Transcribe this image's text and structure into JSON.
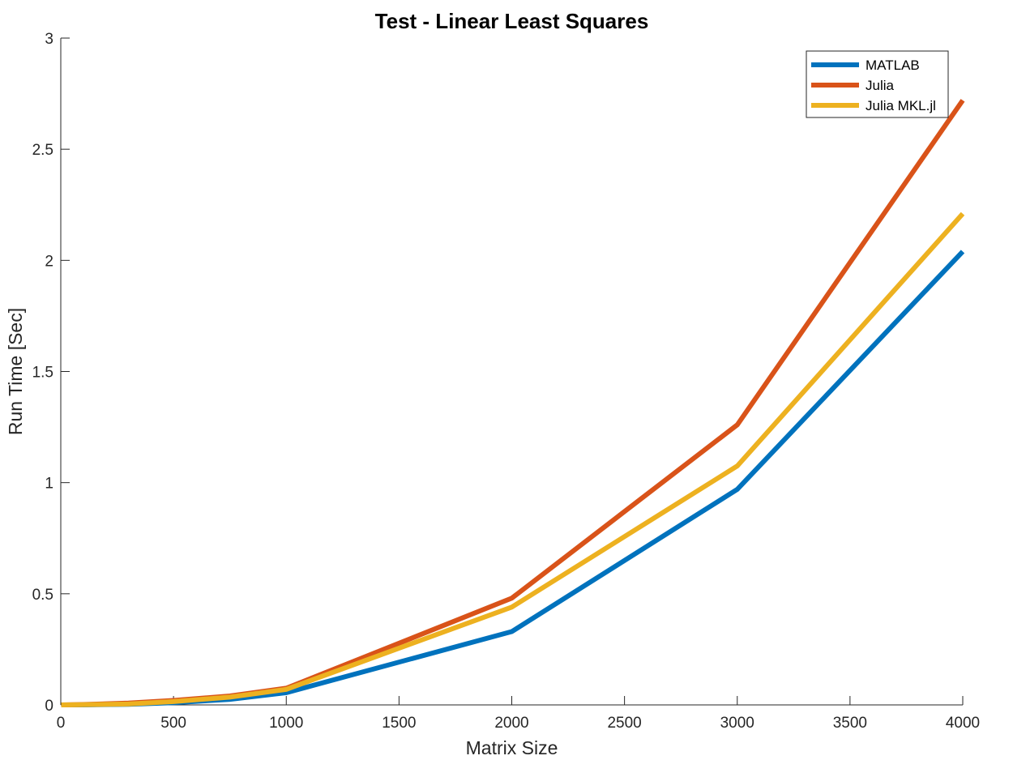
{
  "chart_data": {
    "type": "line",
    "title": "Test - Linear Least Squares",
    "xlabel": "Matrix Size",
    "ylabel": "Run Time  [Sec]",
    "xlim": [
      0,
      4000
    ],
    "ylim": [
      0,
      3
    ],
    "xticks": [
      0,
      500,
      1000,
      1500,
      2000,
      2500,
      3000,
      3500,
      4000
    ],
    "xtick_labels": [
      "0",
      "500",
      "1000",
      "1500",
      "2000",
      "2500",
      "3000",
      "3500",
      "4000"
    ],
    "yticks": [
      0,
      0.5,
      1,
      1.5,
      2,
      2.5,
      3
    ],
    "ytick_labels": [
      "0",
      "0.5",
      "1",
      "1.5",
      "2",
      "2.5",
      "3"
    ],
    "grid": false,
    "legend_position": "top-right",
    "x": [
      2,
      100,
      300,
      500,
      750,
      1000,
      2000,
      3000,
      4000
    ],
    "series": [
      {
        "name": "MATLAB",
        "color": "#0072BD",
        "values": [
          0.0,
          0.0,
          0.003,
          0.01,
          0.025,
          0.055,
          0.33,
          0.97,
          2.04
        ]
      },
      {
        "name": "Julia",
        "color": "#D95319",
        "values": [
          0.0,
          0.002,
          0.008,
          0.02,
          0.04,
          0.075,
          0.48,
          1.26,
          2.72
        ]
      },
      {
        "name": "Julia MKL.jl",
        "color": "#EDB120",
        "values": [
          0.0,
          0.001,
          0.004,
          0.015,
          0.035,
          0.07,
          0.44,
          1.075,
          2.21
        ]
      }
    ]
  }
}
